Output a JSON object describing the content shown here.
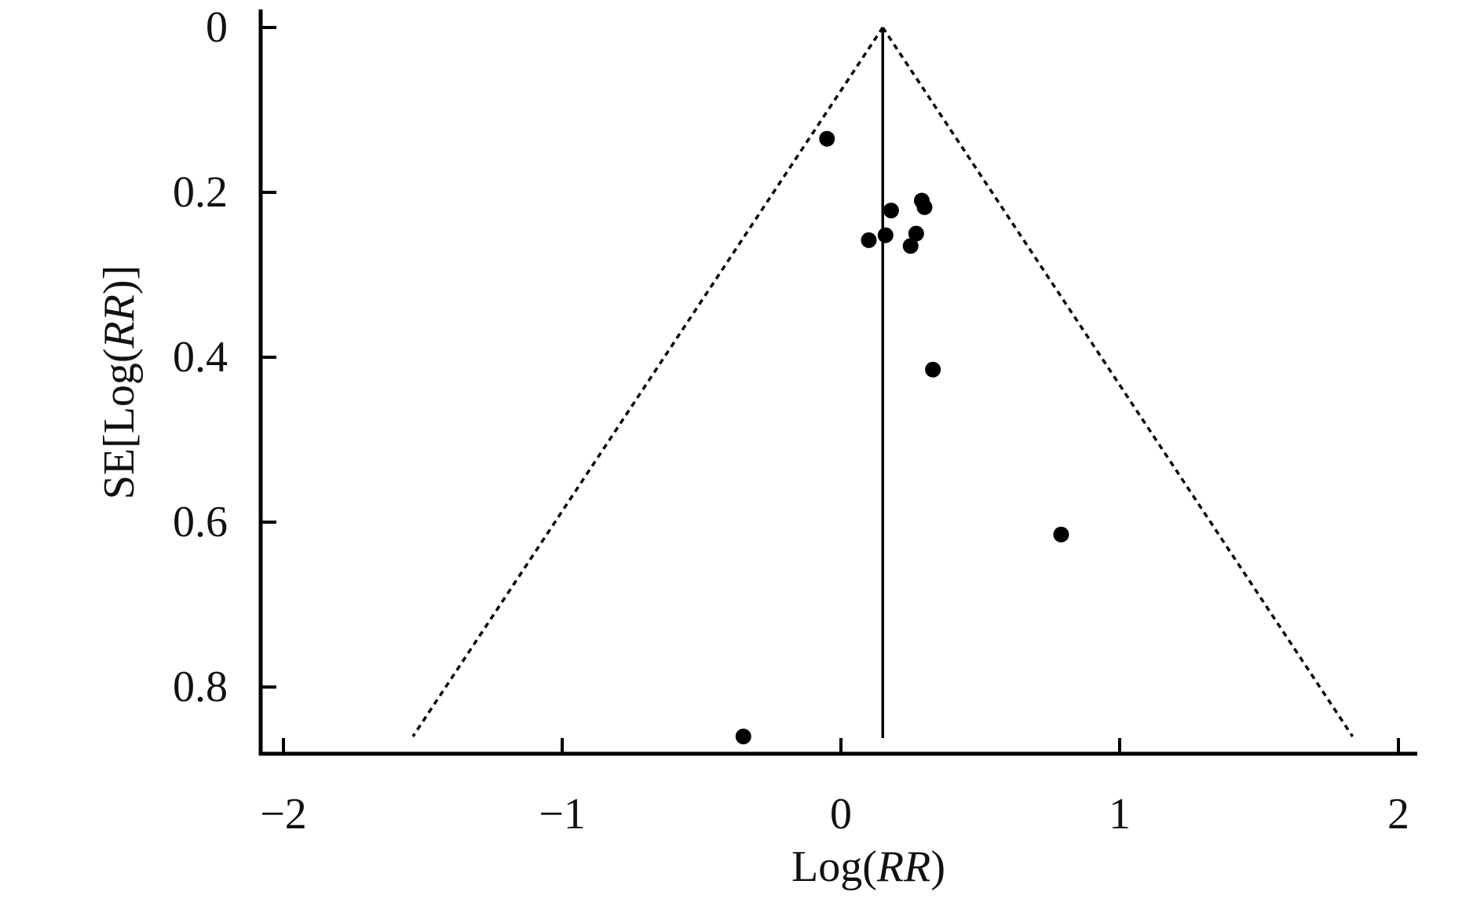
{
  "chart_data": {
    "type": "scatter",
    "subtype": "funnel-plot",
    "title": "",
    "xlabel": "Log(RR)",
    "xlabel_parts": [
      {
        "text": "Log(",
        "italic": false
      },
      {
        "text": "RR",
        "italic": true
      },
      {
        "text": ")",
        "italic": false
      }
    ],
    "ylabel": "SE[Log(RR)]",
    "ylabel_parts": [
      {
        "text": "SE[Log(",
        "italic": false
      },
      {
        "text": "RR",
        "italic": true
      },
      {
        "text": ")]",
        "italic": false
      }
    ],
    "xlim": [
      -2.05,
      2.08
    ],
    "ylim": [
      0,
      0.88
    ],
    "y_inverted": true,
    "x_ticks": [
      -2,
      -1,
      0,
      1,
      2
    ],
    "x_tick_labels": [
      "−2",
      "−1",
      "0",
      "1",
      "2"
    ],
    "y_ticks": [
      0,
      0.2,
      0.4,
      0.6,
      0.8
    ],
    "y_tick_labels": [
      "0",
      "0.2",
      "0.4",
      "0.6",
      "0.8"
    ],
    "grid": false,
    "legend": "none",
    "pooled_estimate": 0.15,
    "funnel_limit_se": 0.86,
    "points": [
      {
        "x": -0.05,
        "y": 0.135
      },
      {
        "x": 0.29,
        "y": 0.21
      },
      {
        "x": 0.3,
        "y": 0.218
      },
      {
        "x": 0.18,
        "y": 0.222
      },
      {
        "x": 0.27,
        "y": 0.25
      },
      {
        "x": 0.16,
        "y": 0.252
      },
      {
        "x": 0.1,
        "y": 0.258
      },
      {
        "x": 0.25,
        "y": 0.265
      },
      {
        "x": 0.33,
        "y": 0.415
      },
      {
        "x": 0.79,
        "y": 0.615
      },
      {
        "x": -0.35,
        "y": 0.86
      }
    ],
    "colors": {
      "marker": "#000000",
      "axis": "#000000",
      "funnel": "#000000",
      "center_line": "#000000"
    }
  }
}
